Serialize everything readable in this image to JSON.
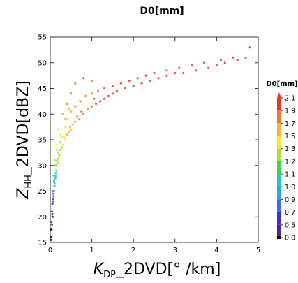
{
  "chart_data": {
    "type": "scatter",
    "title": "D0[mm]",
    "xlabel": {
      "main": "K",
      "sub": "DP",
      "rest": "_2DVD[°  /km]"
    },
    "ylabel": {
      "main": "Z",
      "sub": "HH",
      "rest": "_2DVD[dBZ]"
    },
    "xlim": [
      0,
      5
    ],
    "ylim": [
      15,
      55
    ],
    "xticks": [
      "0",
      "1",
      "2",
      "3",
      "4",
      "5"
    ],
    "yticks": [
      "15",
      "20",
      "25",
      "30",
      "35",
      "40",
      "45",
      "50",
      "55"
    ],
    "grid": false,
    "colorbar": {
      "title": "D0[mm]",
      "ticks": [
        "0.0",
        "0.5",
        "0.7",
        "0.9",
        "1.0",
        "1.1",
        "1.2",
        "1.3",
        "1.5",
        "1.7",
        "1.9",
        "2.1"
      ],
      "colors": [
        "#000000",
        "#5a1e8c",
        "#3a2fd0",
        "#3b6cf0",
        "#2aa6e6",
        "#22c9b8",
        "#43d24e",
        "#a7e52f",
        "#f3ea2c",
        "#f6b531",
        "#ec7d2f",
        "#e03c2c"
      ]
    },
    "series": [
      {
        "x": [
          0.02,
          0.04,
          0.06,
          0.05,
          0.08,
          0.1,
          0.12,
          0.15,
          0.03,
          0.07,
          0.09,
          0.13,
          0.18,
          0.2,
          0.25,
          0.22,
          0.3,
          0.28,
          0.35,
          0.4,
          0.33,
          0.45,
          0.5,
          0.55,
          0.48,
          0.6,
          0.7,
          0.65,
          0.8,
          0.9,
          0.75,
          1.0,
          1.1,
          1.2,
          1.05,
          1.3,
          1.4,
          1.5,
          1.6,
          1.8,
          2.0,
          2.2,
          2.4,
          2.6,
          2.8,
          3.0,
          3.2,
          3.5,
          3.8,
          4.0,
          4.2,
          4.5,
          4.7,
          0.05,
          0.1,
          0.15,
          0.2,
          0.3,
          0.4,
          0.5,
          0.6,
          0.8,
          1.0,
          0.08,
          0.12,
          0.16,
          0.25,
          0.35,
          0.45,
          0.04,
          0.06,
          0.09,
          0.14,
          0.19,
          0.24,
          0.02,
          0.03,
          0.05,
          0.07,
          0.1,
          0.13,
          0.17,
          0.22,
          0.28,
          0.35,
          0.42,
          0.5,
          0.6,
          0.72,
          0.85,
          1.0,
          1.15,
          1.3,
          1.5,
          1.7,
          1.9,
          2.1,
          2.3,
          2.5,
          2.8,
          3.1,
          3.4,
          3.7,
          4.1,
          4.4,
          4.8
        ],
        "y": [
          16.0,
          18.5,
          20.0,
          22.5,
          24.0,
          26.0,
          27.5,
          29.0,
          19.0,
          23.0,
          25.0,
          28.0,
          30.5,
          31.5,
          33.0,
          32.0,
          34.0,
          33.5,
          35.0,
          36.0,
          35.5,
          36.5,
          37.0,
          38.0,
          37.5,
          38.5,
          39.0,
          39.5,
          40.0,
          41.0,
          40.5,
          41.5,
          42.0,
          42.5,
          43.0,
          43.0,
          43.5,
          44.0,
          44.5,
          45.0,
          45.5,
          46.0,
          46.5,
          47.0,
          47.5,
          48.0,
          48.0,
          48.5,
          49.0,
          49.5,
          50.0,
          50.5,
          51.0,
          25.0,
          30.0,
          34.0,
          37.0,
          40.0,
          42.0,
          44.0,
          46.0,
          47.0,
          46.5,
          28.0,
          31.0,
          33.0,
          36.0,
          39.0,
          41.0,
          21.0,
          24.5,
          27.0,
          30.0,
          32.5,
          34.5,
          15.5,
          17.5,
          20.5,
          23.5,
          26.5,
          28.5,
          31.0,
          33.0,
          35.5,
          37.5,
          39.0,
          40.5,
          41.5,
          42.5,
          43.5,
          44.0,
          44.5,
          45.0,
          45.5,
          46.0,
          46.5,
          47.0,
          47.5,
          48.0,
          48.5,
          49.0,
          49.5,
          50.0,
          50.5,
          51.0,
          53.0
        ],
        "d0": [
          0.3,
          0.5,
          0.6,
          0.8,
          0.9,
          1.0,
          1.1,
          1.2,
          0.5,
          0.7,
          0.9,
          1.1,
          1.3,
          1.3,
          1.4,
          1.3,
          1.5,
          1.4,
          1.6,
          1.7,
          1.6,
          1.7,
          1.8,
          1.8,
          1.7,
          1.9,
          1.9,
          1.9,
          2.0,
          2.0,
          2.0,
          2.0,
          2.1,
          2.1,
          2.1,
          2.1,
          2.1,
          2.1,
          2.1,
          2.1,
          2.1,
          2.1,
          2.1,
          2.1,
          2.1,
          2.1,
          2.1,
          2.1,
          2.1,
          2.1,
          2.1,
          2.1,
          2.1,
          1.0,
          1.3,
          1.5,
          1.6,
          1.8,
          1.9,
          2.0,
          2.0,
          2.1,
          1.9,
          1.2,
          1.4,
          1.4,
          1.5,
          1.7,
          1.8,
          0.7,
          0.9,
          1.0,
          1.2,
          1.3,
          1.4,
          0.3,
          0.4,
          0.6,
          0.8,
          1.0,
          1.1,
          1.3,
          1.4,
          1.5,
          1.6,
          1.7,
          1.8,
          1.9,
          1.9,
          2.0,
          2.0,
          2.0,
          2.1,
          2.1,
          2.1,
          2.1,
          2.1,
          2.1,
          2.1,
          2.1,
          2.1,
          2.1,
          2.1,
          2.1,
          2.1,
          2.1
        ]
      }
    ]
  }
}
